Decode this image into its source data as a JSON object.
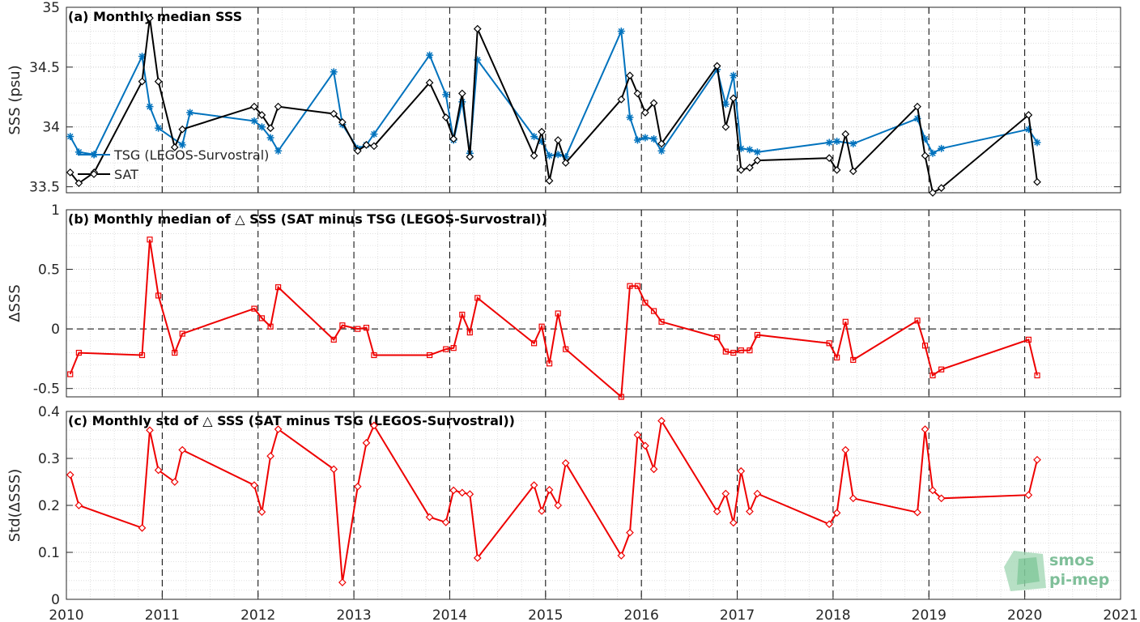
{
  "chart_data": [
    {
      "type": "line",
      "title": "(a) Monthly median SSS",
      "ylabel": "SSS (psu)",
      "xlim": [
        2010,
        2021
      ],
      "ylim": [
        33.45,
        35
      ],
      "yticks": [
        33.5,
        34,
        34.5,
        35
      ],
      "ytick_labels": [
        "33.5",
        "34",
        "34.5",
        "35"
      ],
      "grid": true,
      "legend_placement": "middle-left",
      "series": [
        {
          "name": "TSG (LEGOS-Survostral)",
          "color": "#0072bd",
          "marker": "asterisk",
          "x": [
            2010.04,
            2010.13,
            2010.29,
            2010.79,
            2010.87,
            2010.96,
            2011.21,
            2011.29,
            2011.96,
            2012.04,
            2012.13,
            2012.21,
            2012.79,
            2012.88,
            2013.04,
            2013.13,
            2013.21,
            2013.79,
            2013.96,
            2014.04,
            2014.13,
            2014.21,
            2014.29,
            2014.88,
            2014.96,
            2015.04,
            2015.13,
            2015.21,
            2015.79,
            2015.88,
            2015.96,
            2016.04,
            2016.13,
            2016.21,
            2016.79,
            2016.88,
            2016.96,
            2017.04,
            2017.13,
            2017.21,
            2017.96,
            2018.04,
            2018.21,
            2018.88,
            2018.96,
            2019.04,
            2019.13,
            2020.04,
            2020.13
          ],
          "y": [
            33.92,
            33.79,
            33.77,
            34.59,
            34.17,
            33.99,
            33.85,
            34.12,
            34.05,
            34.0,
            33.91,
            33.8,
            34.46,
            34.02,
            33.82,
            33.85,
            33.94,
            34.6,
            34.27,
            33.89,
            34.21,
            33.78,
            34.56,
            33.92,
            33.88,
            33.76,
            33.77,
            33.75,
            34.8,
            34.08,
            33.89,
            33.91,
            33.9,
            33.8,
            34.48,
            34.19,
            34.43,
            33.82,
            33.81,
            33.79,
            33.87,
            33.88,
            33.86,
            34.07,
            33.9,
            33.78,
            33.82,
            33.98,
            33.87
          ]
        },
        {
          "name": "SAT",
          "color": "#000000",
          "marker": "diamond",
          "x": [
            2010.04,
            2010.13,
            2010.29,
            2010.79,
            2010.87,
            2010.96,
            2011.13,
            2011.21,
            2011.96,
            2012.04,
            2012.13,
            2012.21,
            2012.79,
            2012.88,
            2013.04,
            2013.13,
            2013.21,
            2013.79,
            2013.96,
            2014.04,
            2014.13,
            2014.21,
            2014.29,
            2014.88,
            2014.96,
            2015.04,
            2015.13,
            2015.21,
            2015.79,
            2015.88,
            2015.96,
            2016.04,
            2016.13,
            2016.21,
            2016.79,
            2016.88,
            2016.96,
            2017.04,
            2017.13,
            2017.21,
            2017.96,
            2018.04,
            2018.13,
            2018.21,
            2018.88,
            2018.96,
            2019.04,
            2019.13,
            2020.04,
            2020.13
          ],
          "y": [
            33.62,
            33.53,
            33.62,
            34.38,
            34.91,
            34.38,
            33.83,
            33.98,
            34.17,
            34.1,
            33.99,
            34.17,
            34.11,
            34.04,
            33.8,
            33.85,
            33.84,
            34.37,
            34.08,
            33.9,
            34.28,
            33.75,
            34.82,
            33.76,
            33.96,
            33.55,
            33.89,
            33.7,
            34.23,
            34.43,
            34.28,
            34.12,
            34.2,
            33.86,
            34.51,
            34.0,
            34.24,
            33.64,
            33.66,
            33.72,
            33.74,
            33.64,
            33.94,
            33.63,
            34.17,
            33.76,
            33.45,
            33.49,
            34.1,
            33.54
          ]
        }
      ]
    },
    {
      "type": "line",
      "title": "(b) Monthly median of △ SSS (SAT minus TSG (LEGOS-Survostral))",
      "ylabel": "ΔSSS",
      "xlim": [
        2010,
        2021
      ],
      "ylim": [
        -0.57,
        1
      ],
      "yticks": [
        -0.5,
        0,
        0.5,
        1
      ],
      "ytick_labels": [
        "-0.5",
        "0",
        "0.5",
        "1"
      ],
      "zero_line": true,
      "grid": true,
      "series": [
        {
          "color": "#ee0000",
          "marker": "square",
          "x": [
            2010.04,
            2010.13,
            2010.79,
            2010.87,
            2010.96,
            2011.13,
            2011.21,
            2011.96,
            2012.04,
            2012.13,
            2012.21,
            2012.79,
            2012.88,
            2013.04,
            2013.13,
            2013.21,
            2013.79,
            2013.96,
            2014.04,
            2014.13,
            2014.21,
            2014.29,
            2014.88,
            2014.96,
            2015.04,
            2015.13,
            2015.21,
            2015.79,
            2015.88,
            2015.96,
            2016.04,
            2016.13,
            2016.21,
            2016.79,
            2016.88,
            2016.96,
            2017.04,
            2017.13,
            2017.21,
            2017.96,
            2018.04,
            2018.13,
            2018.21,
            2018.88,
            2018.96,
            2019.04,
            2019.13,
            2020.04,
            2020.13
          ],
          "y": [
            -0.38,
            -0.2,
            -0.22,
            0.75,
            0.28,
            -0.2,
            -0.04,
            0.17,
            0.09,
            0.02,
            0.35,
            -0.09,
            0.03,
            0.0,
            0.01,
            -0.22,
            -0.22,
            -0.17,
            -0.16,
            0.12,
            -0.03,
            0.26,
            -0.12,
            0.02,
            -0.29,
            0.13,
            -0.17,
            -0.57,
            0.36,
            0.36,
            0.22,
            0.15,
            0.06,
            -0.07,
            -0.19,
            -0.2,
            -0.18,
            -0.18,
            -0.05,
            -0.12,
            -0.24,
            0.06,
            -0.26,
            0.07,
            -0.14,
            -0.39,
            -0.34,
            -0.09,
            -0.39
          ]
        }
      ]
    },
    {
      "type": "line",
      "title": "(c) Monthly std of △ SSS (SAT minus TSG (LEGOS-Survostral))",
      "ylabel": "Std(ΔSSS)",
      "xlabel": "",
      "xlim": [
        2010,
        2021
      ],
      "ylim": [
        0,
        0.4
      ],
      "yticks": [
        0,
        0.1,
        0.2,
        0.3,
        0.4
      ],
      "ytick_labels": [
        "0",
        "0.1",
        "0.2",
        "0.3",
        "0.4"
      ],
      "xticks": [
        2010,
        2011,
        2012,
        2013,
        2014,
        2015,
        2016,
        2017,
        2018,
        2019,
        2020,
        2021
      ],
      "xtick_labels": [
        "2010",
        "2011",
        "2012",
        "2013",
        "2014",
        "2015",
        "2016",
        "2017",
        "2018",
        "2019",
        "2020",
        "2021"
      ],
      "grid": true,
      "series": [
        {
          "color": "#ee0000",
          "marker": "diamond",
          "x": [
            2010.04,
            2010.13,
            2010.79,
            2010.87,
            2010.96,
            2011.13,
            2011.21,
            2011.96,
            2012.04,
            2012.13,
            2012.21,
            2012.79,
            2012.88,
            2013.04,
            2013.13,
            2013.21,
            2013.79,
            2013.96,
            2014.04,
            2014.13,
            2014.21,
            2014.29,
            2014.88,
            2014.96,
            2015.04,
            2015.13,
            2015.21,
            2015.79,
            2015.88,
            2015.96,
            2016.04,
            2016.13,
            2016.21,
            2016.79,
            2016.88,
            2016.96,
            2017.04,
            2017.13,
            2017.21,
            2017.96,
            2018.04,
            2018.13,
            2018.21,
            2018.88,
            2018.96,
            2019.04,
            2019.13,
            2020.04,
            2020.13
          ],
          "y": [
            0.265,
            0.2,
            0.152,
            0.36,
            0.275,
            0.25,
            0.318,
            0.243,
            0.186,
            0.305,
            0.362,
            0.277,
            0.036,
            0.24,
            0.333,
            0.37,
            0.175,
            0.164,
            0.232,
            0.227,
            0.224,
            0.088,
            0.243,
            0.188,
            0.233,
            0.2,
            0.29,
            0.093,
            0.142,
            0.35,
            0.327,
            0.277,
            0.38,
            0.187,
            0.225,
            0.163,
            0.273,
            0.187,
            0.225,
            0.16,
            0.184,
            0.318,
            0.215,
            0.185,
            0.362,
            0.232,
            0.215,
            0.222,
            0.297
          ]
        }
      ]
    }
  ],
  "watermark": {
    "line1": "smos",
    "line2": "pi-mep",
    "color": "#7fbf99"
  }
}
